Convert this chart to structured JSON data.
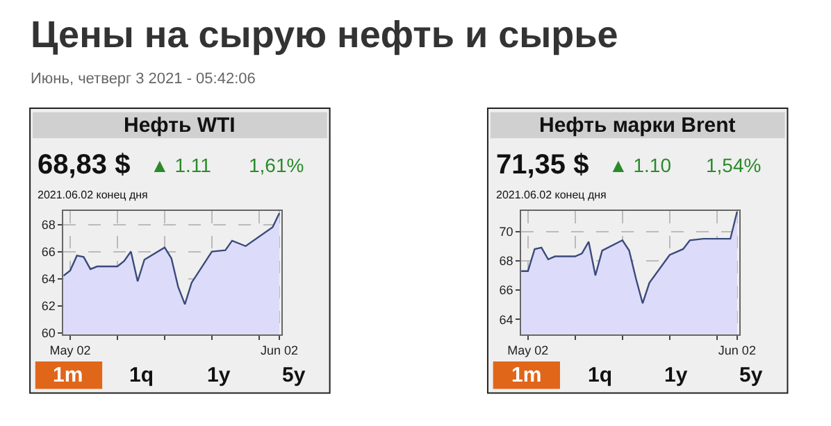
{
  "chart_data": [
    {
      "type": "area",
      "title": "Нефть WTI",
      "annotations": [
        "Цены на сырую нефть и сырье",
        "Июнь, четверг 3 2021 - 05:42:06",
        "68,83 $",
        "▲ 1.11",
        "1,61%",
        "2021.06.02 конец дня",
        "1m",
        "1q",
        "1y",
        "5y"
      ],
      "x": [
        "2021-05-01",
        "2021-05-02",
        "2021-05-03",
        "2021-05-04",
        "2021-05-05",
        "2021-05-06",
        "2021-05-09",
        "2021-05-10",
        "2021-05-11",
        "2021-05-12",
        "2021-05-13",
        "2021-05-16",
        "2021-05-17",
        "2021-05-18",
        "2021-05-19",
        "2021-05-20",
        "2021-05-23",
        "2021-05-25",
        "2021-05-26",
        "2021-05-28",
        "2021-06-01",
        "2021-06-02"
      ],
      "series": [
        {
          "color": "#3b4a7c",
          "values": [
            64.2,
            64.6,
            65.7,
            65.6,
            64.7,
            64.9,
            64.9,
            65.3,
            66.0,
            63.8,
            65.4,
            66.3,
            65.5,
            63.4,
            62.1,
            63.7,
            66.0,
            66.1,
            66.8,
            66.4,
            67.8,
            68.83
          ]
        }
      ],
      "xlim": [
        "2021-05-01",
        "2021-06-02T08:00"
      ],
      "xticks": [
        {
          "value": "2021-05-02",
          "label": "May 02"
        },
        {
          "value": "2021-05-09",
          "label": null
        },
        {
          "value": "2021-05-16",
          "label": null
        },
        {
          "value": "2021-05-23",
          "label": null
        },
        {
          "value": "2021-05-30",
          "label": null
        },
        {
          "value": "2021-06-02",
          "label": "Jun 02"
        }
      ],
      "ylim": [
        59.9,
        69.0
      ],
      "yticks": [
        60,
        62,
        64,
        66,
        68
      ],
      "grid": true
    },
    {
      "type": "area",
      "title": "Нефть марки Brent",
      "annotations": [
        "71,35 $",
        "▲ 1.10",
        "1,54%",
        "2021.06.02 конец дня",
        "1m",
        "1q",
        "1y",
        "5y"
      ],
      "x": [
        "2021-05-01",
        "2021-05-02",
        "2021-05-03",
        "2021-05-04",
        "2021-05-05",
        "2021-05-06",
        "2021-05-09",
        "2021-05-10",
        "2021-05-11",
        "2021-05-12",
        "2021-05-13",
        "2021-05-16",
        "2021-05-17",
        "2021-05-18",
        "2021-05-19",
        "2021-05-20",
        "2021-05-23",
        "2021-05-25",
        "2021-05-26",
        "2021-05-28",
        "2021-06-01",
        "2021-06-02"
      ],
      "series": [
        {
          "color": "#3b4a7c",
          "values": [
            67.3,
            67.3,
            68.8,
            68.9,
            68.1,
            68.3,
            68.3,
            68.5,
            69.3,
            67.0,
            68.7,
            69.4,
            68.7,
            66.8,
            65.1,
            66.5,
            68.4,
            68.8,
            69.4,
            69.5,
            69.5,
            71.35
          ]
        }
      ],
      "xlim": [
        "2021-05-01",
        "2021-06-02T08:00"
      ],
      "xticks": [
        {
          "value": "2021-05-02",
          "label": "May 02"
        },
        {
          "value": "2021-05-09",
          "label": null
        },
        {
          "value": "2021-05-16",
          "label": null
        },
        {
          "value": "2021-05-23",
          "label": null
        },
        {
          "value": "2021-05-30",
          "label": null
        },
        {
          "value": "2021-06-02",
          "label": "Jun 02"
        }
      ],
      "ylim": [
        63.0,
        71.4
      ],
      "yticks": [
        64,
        66,
        68,
        70
      ],
      "grid": true
    }
  ]
}
